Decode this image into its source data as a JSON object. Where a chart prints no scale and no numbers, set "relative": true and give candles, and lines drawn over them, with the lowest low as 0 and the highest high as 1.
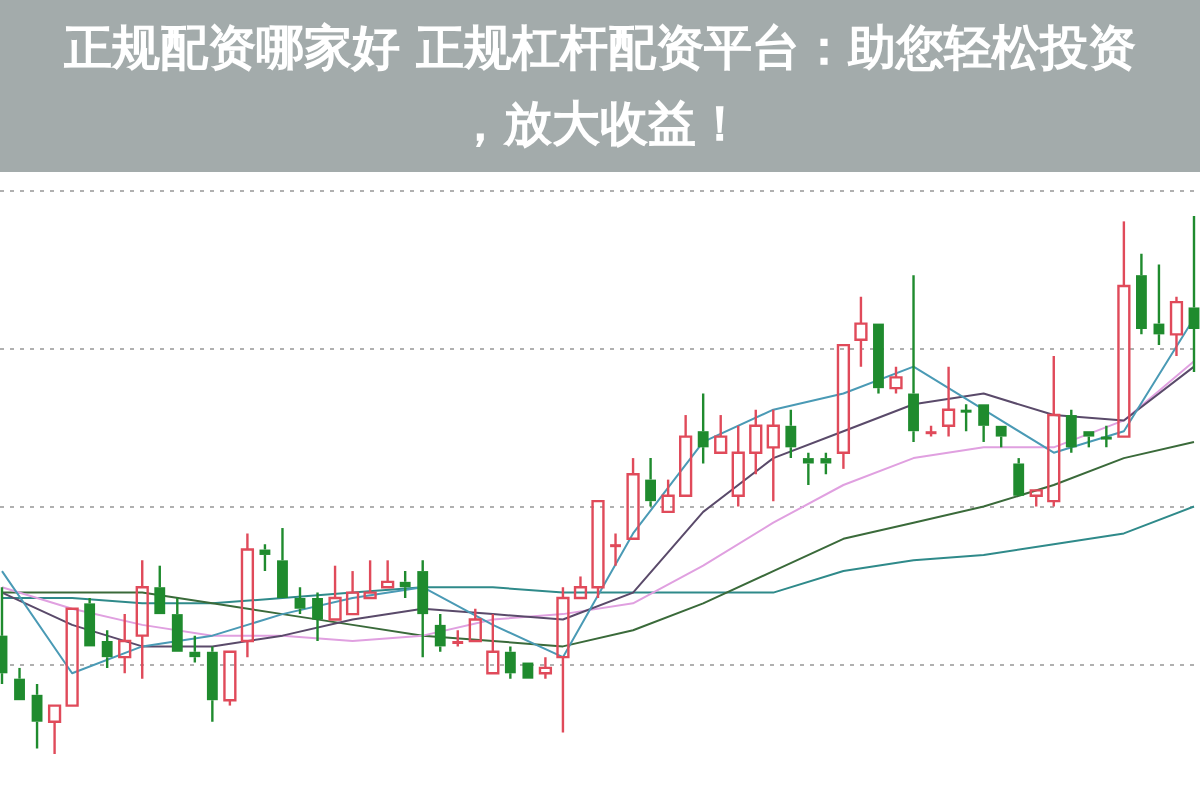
{
  "chart_data": {
    "type": "candlestick",
    "title": "正规配资哪家好 正规杠杆配资平台：助您轻松投资，放大收益！",
    "relative": true,
    "grid": true,
    "legend": false,
    "categories": [
      null,
      null,
      null,
      null,
      null,
      null,
      null,
      null,
      null,
      null,
      null,
      null,
      null,
      null,
      null,
      null,
      null,
      null,
      null,
      null,
      null,
      null,
      null,
      null,
      null,
      null,
      null,
      null,
      null,
      null,
      null,
      null,
      null,
      null,
      null,
      null,
      null,
      null,
      null,
      null,
      null,
      null,
      null,
      null,
      null,
      null,
      null,
      null,
      null,
      null,
      null,
      null,
      null,
      null,
      null,
      null,
      null,
      null,
      null,
      null,
      null,
      null,
      null,
      null,
      null,
      null,
      null,
      null,
      null
    ],
    "ohlc": [
      [
        0.22,
        0.31,
        0.13,
        0.15
      ],
      [
        0.14,
        0.16,
        0.1,
        0.1
      ],
      [
        0.11,
        0.13,
        0.01,
        0.06
      ],
      [
        0.06,
        0.09,
        0,
        0.09
      ],
      [
        0.09,
        0.27,
        0.09,
        0.27
      ],
      [
        0.28,
        0.29,
        0.2,
        0.2
      ],
      [
        0.21,
        0.23,
        0.16,
        0.18
      ],
      [
        0.18,
        0.26,
        0.15,
        0.21
      ],
      [
        0.22,
        0.36,
        0.14,
        0.31
      ],
      [
        0.31,
        0.35,
        0.26,
        0.26
      ],
      [
        0.26,
        0.29,
        0.19,
        0.19
      ],
      [
        0.19,
        0.22,
        0.17,
        0.18
      ],
      [
        0.19,
        0.2,
        0.06,
        0.1
      ],
      [
        0.1,
        0.19,
        0.09,
        0.19
      ],
      [
        0.21,
        0.41,
        0.18,
        0.38
      ],
      [
        0.38,
        0.39,
        0.34,
        0.37
      ],
      [
        0.36,
        0.42,
        0.29,
        0.29
      ],
      [
        0.29,
        0.31,
        0.26,
        0.27
      ],
      [
        0.29,
        0.3,
        0.21,
        0.25
      ],
      [
        0.25,
        0.35,
        0.25,
        0.29
      ],
      [
        0.26,
        0.34,
        0.26,
        0.3
      ],
      [
        0.29,
        0.36,
        0.29,
        0.3
      ],
      [
        0.31,
        0.36,
        0.31,
        0.32
      ],
      [
        0.32,
        0.34,
        0.29,
        0.31
      ],
      [
        0.34,
        0.36,
        0.18,
        0.26
      ],
      [
        0.24,
        0.26,
        0.19,
        0.2
      ],
      [
        0.21,
        0.23,
        0.2,
        0.21
      ],
      [
        0.21,
        0.27,
        0.21,
        0.25
      ],
      [
        0.15,
        0.26,
        0.15,
        0.19
      ],
      [
        0.19,
        0.2,
        0.14,
        0.15
      ],
      [
        0.17,
        0.17,
        0.14,
        0.14
      ],
      [
        0.15,
        0.18,
        0.14,
        0.16
      ],
      [
        0.18,
        0.31,
        0.04,
        0.29
      ],
      [
        0.29,
        0.33,
        0.29,
        0.31
      ],
      [
        0.31,
        0.47,
        0.29,
        0.47
      ],
      [
        0.39,
        0.41,
        0.35,
        0.39
      ],
      [
        0.4,
        0.55,
        0.4,
        0.52
      ],
      [
        0.51,
        0.55,
        0.46,
        0.47
      ],
      [
        0.45,
        0.51,
        0.45,
        0.48
      ],
      [
        0.48,
        0.63,
        0.48,
        0.59
      ],
      [
        0.6,
        0.67,
        0.54,
        0.57
      ],
      [
        0.56,
        0.63,
        0.56,
        0.59
      ],
      [
        0.48,
        0.61,
        0.46,
        0.56
      ],
      [
        0.56,
        0.64,
        0.52,
        0.61
      ],
      [
        0.57,
        0.64,
        0.47,
        0.61
      ],
      [
        0.61,
        0.64,
        0.55,
        0.57
      ],
      [
        0.55,
        0.56,
        0.5,
        0.54
      ],
      [
        0.55,
        0.56,
        0.52,
        0.54
      ],
      [
        0.56,
        0.76,
        0.53,
        0.76
      ],
      [
        0.77,
        0.85,
        0.72,
        0.8
      ],
      [
        0.8,
        0.8,
        0.67,
        0.68
      ],
      [
        0.68,
        0.72,
        0.67,
        0.7
      ],
      [
        0.67,
        0.89,
        0.58,
        0.6
      ],
      [
        0.6,
        0.61,
        0.59,
        0.6
      ],
      [
        0.61,
        0.72,
        0.59,
        0.64
      ],
      [
        0.64,
        0.65,
        0.6,
        0.64
      ],
      [
        0.65,
        0.65,
        0.58,
        0.61
      ],
      [
        0.61,
        0.61,
        0.57,
        0.59
      ],
      [
        0.54,
        0.55,
        0.48,
        0.48
      ],
      [
        0.48,
        0.49,
        0.46,
        0.49
      ],
      [
        0.47,
        0.74,
        0.46,
        0.63
      ],
      [
        0.63,
        0.64,
        0.56,
        0.57
      ],
      [
        0.6,
        0.6,
        0.57,
        0.59
      ],
      [
        0.59,
        0.61,
        0.57,
        0.59
      ],
      [
        0.59,
        0.99,
        0.59,
        0.87
      ],
      [
        0.89,
        0.93,
        0.78,
        0.79
      ],
      [
        0.8,
        0.91,
        0.76,
        0.78
      ],
      [
        0.78,
        0.85,
        0.74,
        0.84
      ],
      [
        0.83,
        1,
        0.71,
        0.79
      ]
    ],
    "colors": [
      "#1f8b2e",
      "#1f8b2e",
      "#1f8b2e",
      "#e04a5a",
      "#e04a5a",
      "#1f8b2e",
      "#1f8b2e",
      "#e04a5a",
      "#e04a5a",
      "#1f8b2e",
      "#1f8b2e",
      "#1f8b2e",
      "#1f8b2e",
      "#e04a5a",
      "#e04a5a",
      "#1f8b2e",
      "#1f8b2e",
      "#1f8b2e",
      "#1f8b2e",
      "#e04a5a",
      "#e04a5a",
      "#e04a5a",
      "#e04a5a",
      "#1f8b2e",
      "#1f8b2e",
      "#1f8b2e",
      "#e04a5a",
      "#e04a5a",
      "#e04a5a",
      "#1f8b2e",
      "#1f8b2e",
      "#e04a5a",
      "#e04a5a",
      "#e04a5a",
      "#e04a5a",
      "#e04a5a",
      "#e04a5a",
      "#1f8b2e",
      "#e04a5a",
      "#e04a5a",
      "#1f8b2e",
      "#e04a5a",
      "#e04a5a",
      "#e04a5a",
      "#e04a5a",
      "#1f8b2e",
      "#1f8b2e",
      "#1f8b2e",
      "#e04a5a",
      "#e04a5a",
      "#1f8b2e",
      "#e04a5a",
      "#1f8b2e",
      "#e04a5a",
      "#e04a5a",
      "#1f8b2e",
      "#1f8b2e",
      "#1f8b2e",
      "#1f8b2e",
      "#e04a5a",
      "#e04a5a",
      "#1f8b2e",
      "#1f8b2e",
      "#1f8b2e",
      "#e04a5a",
      "#1f8b2e",
      "#1f8b2e",
      "#e04a5a",
      "#1f8b2e"
    ],
    "series": [
      {
        "type": "line",
        "color": "#4a9ab5",
        "values": [
          0.34,
          null,
          null,
          null,
          0.15,
          null,
          null,
          null,
          0.2,
          null,
          null,
          null,
          0.22,
          null,
          null,
          null,
          0.26,
          null,
          null,
          null,
          0.29,
          null,
          null,
          null,
          0.31,
          null,
          null,
          null,
          0.24,
          null,
          null,
          null,
          0.18,
          null,
          null,
          null,
          0.41,
          null,
          null,
          null,
          0.58,
          null,
          null,
          null,
          0.64,
          null,
          null,
          null,
          0.67,
          null,
          null,
          null,
          0.72,
          null,
          null,
          null,
          0.64,
          null,
          null,
          null,
          0.56,
          null,
          null,
          null,
          0.6,
          null,
          null,
          null,
          0.81
        ]
      },
      {
        "type": "line",
        "color": "#5a4a6a",
        "values": [
          0.3,
          null,
          null,
          null,
          0.24,
          null,
          null,
          null,
          0.2,
          null,
          null,
          null,
          0.2,
          null,
          null,
          null,
          0.22,
          null,
          null,
          null,
          0.25,
          null,
          null,
          null,
          0.27,
          null,
          null,
          null,
          0.26,
          null,
          null,
          null,
          0.25,
          null,
          null,
          null,
          0.3,
          null,
          null,
          null,
          0.45,
          null,
          null,
          null,
          0.55,
          null,
          null,
          null,
          0.6,
          null,
          null,
          null,
          0.65,
          null,
          null,
          null,
          0.67,
          null,
          null,
          null,
          0.63,
          null,
          null,
          null,
          0.62,
          null,
          null,
          null,
          0.72
        ]
      },
      {
        "type": "line",
        "color": "#e0a0e0",
        "values": [
          0.31,
          null,
          null,
          null,
          0.27,
          null,
          null,
          null,
          0.24,
          null,
          null,
          null,
          0.22,
          null,
          null,
          null,
          0.22,
          null,
          null,
          null,
          0.21,
          null,
          null,
          null,
          0.22,
          null,
          null,
          null,
          0.25,
          null,
          null,
          null,
          0.26,
          null,
          null,
          null,
          0.28,
          null,
          null,
          null,
          0.35,
          null,
          null,
          null,
          0.43,
          null,
          null,
          null,
          0.5,
          null,
          null,
          null,
          0.55,
          null,
          null,
          null,
          0.57,
          null,
          null,
          null,
          0.57,
          null,
          null,
          null,
          0.62,
          null,
          null,
          null,
          0.73
        ]
      },
      {
        "type": "line",
        "color": "#3a6a3a",
        "values": [
          0.3,
          null,
          null,
          null,
          0.3,
          null,
          null,
          null,
          0.3,
          null,
          null,
          null,
          0.28,
          null,
          null,
          null,
          0.26,
          null,
          null,
          null,
          0.24,
          null,
          null,
          null,
          0.22,
          null,
          null,
          null,
          0.21,
          null,
          null,
          null,
          0.2,
          null,
          null,
          null,
          0.23,
          null,
          null,
          null,
          0.28,
          null,
          null,
          null,
          0.34,
          null,
          null,
          null,
          0.4,
          null,
          null,
          null,
          0.43,
          null,
          null,
          null,
          0.46,
          null,
          null,
          null,
          0.5,
          null,
          null,
          null,
          0.55,
          null,
          null,
          null,
          0.58
        ]
      },
      {
        "type": "line",
        "color": "#2f8a8a",
        "values": [
          0.29,
          null,
          null,
          null,
          0.29,
          null,
          null,
          null,
          0.28,
          null,
          null,
          null,
          0.28,
          null,
          null,
          null,
          0.29,
          null,
          null,
          null,
          0.3,
          null,
          null,
          null,
          0.31,
          null,
          null,
          null,
          0.31,
          null,
          null,
          null,
          0.3,
          null,
          null,
          null,
          0.3,
          null,
          null,
          null,
          0.3,
          null,
          null,
          null,
          0.3,
          null,
          null,
          null,
          0.34,
          null,
          null,
          null,
          0.36,
          null,
          null,
          null,
          0.37,
          null,
          null,
          null,
          0.39,
          null,
          null,
          null,
          0.41,
          null,
          null,
          null,
          0.46
        ]
      }
    ]
  }
}
